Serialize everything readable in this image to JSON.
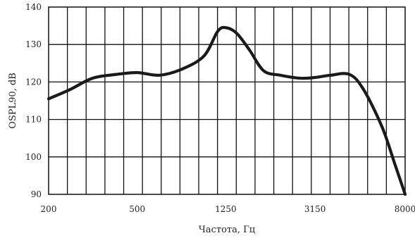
{
  "chart_data": {
    "type": "line",
    "title": "",
    "xlabel": "Частота, Гц",
    "ylabel": "OSPL90, dB",
    "x_scale": "log",
    "xlim": [
      200,
      8000
    ],
    "ylim": [
      90,
      140
    ],
    "y_ticks": [
      90,
      100,
      110,
      120,
      130,
      140
    ],
    "x_tick_labels": [
      "200",
      "500",
      "1250",
      "3150",
      "8000"
    ],
    "x_tick_values": [
      200,
      500,
      1250,
      3150,
      8000
    ],
    "grid": true,
    "series": [
      {
        "name": "",
        "color": "#1a1a1a",
        "x": [
          200,
          250,
          315,
          400,
          500,
          630,
          800,
          1000,
          1150,
          1250,
          1400,
          1600,
          1850,
          2200,
          2700,
          3150,
          3700,
          4500,
          5200,
          6300,
          7200,
          8000
        ],
        "y": [
          115.5,
          118,
          121,
          122,
          122.5,
          121.8,
          123.5,
          127,
          133.5,
          134.5,
          133,
          128.5,
          123,
          121.8,
          121,
          121.2,
          121.8,
          122,
          118,
          108,
          98,
          90
        ]
      }
    ]
  }
}
